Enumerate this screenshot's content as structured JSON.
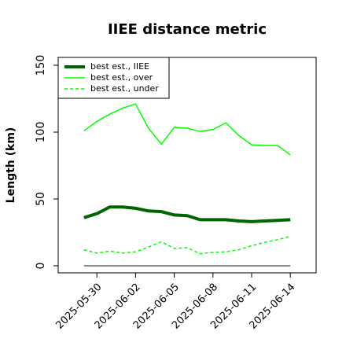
{
  "chart_data": {
    "type": "line",
    "title": "IIEE distance metric",
    "y_label": "Length (km)",
    "x": [
      "2025-05-29",
      "2025-05-30",
      "2025-05-31",
      "2025-06-01",
      "2025-06-02",
      "2025-06-03",
      "2025-06-04",
      "2025-06-05",
      "2025-06-06",
      "2025-06-07",
      "2025-06-08",
      "2025-06-09",
      "2025-06-10",
      "2025-06-11",
      "2025-06-12",
      "2025-06-13",
      "2025-06-14"
    ],
    "series": [
      {
        "name": "best est., IIEE",
        "color": "#006400",
        "line_width": 4,
        "line_style": "solid",
        "values": [
          36,
          39,
          44,
          44,
          43,
          41,
          40.5,
          38,
          37.5,
          34.5,
          34.5,
          34.5,
          33.5,
          33,
          33.5,
          34,
          34.5
        ]
      },
      {
        "name": "best est., over",
        "color": "#00ff00",
        "line_width": 1.5,
        "line_style": "solid",
        "values": [
          101,
          108,
          113.5,
          118,
          121,
          103,
          91,
          103.5,
          103,
          100.5,
          102,
          107,
          97.5,
          90.5,
          90,
          90,
          83
        ]
      },
      {
        "name": "best est., under",
        "color": "#00ff00",
        "line_width": 1.5,
        "line_style": "dashed",
        "values": [
          12,
          9.5,
          11,
          9.5,
          10.5,
          14,
          18,
          13,
          13.5,
          9,
          10,
          10.5,
          12,
          15,
          17.5,
          19.5,
          22
        ]
      },
      {
        "color": "#666666",
        "line_width": 1.5,
        "line_style": "solid",
        "values": [
          0,
          0,
          0,
          0,
          0,
          0,
          0,
          0,
          0,
          0,
          0,
          0,
          0,
          0,
          0,
          0,
          0
        ]
      }
    ],
    "xlim": [
      "2025-05-27",
      "2025-06-16"
    ],
    "xticks": [
      "2025-05-30",
      "2025-06-02",
      "2025-06-05",
      "2025-06-08",
      "2025-06-11",
      "2025-06-14"
    ],
    "ylim": [
      -5.3,
      155.9
    ],
    "yticks": [
      0,
      50,
      100,
      150
    ],
    "legend": "upper left"
  }
}
